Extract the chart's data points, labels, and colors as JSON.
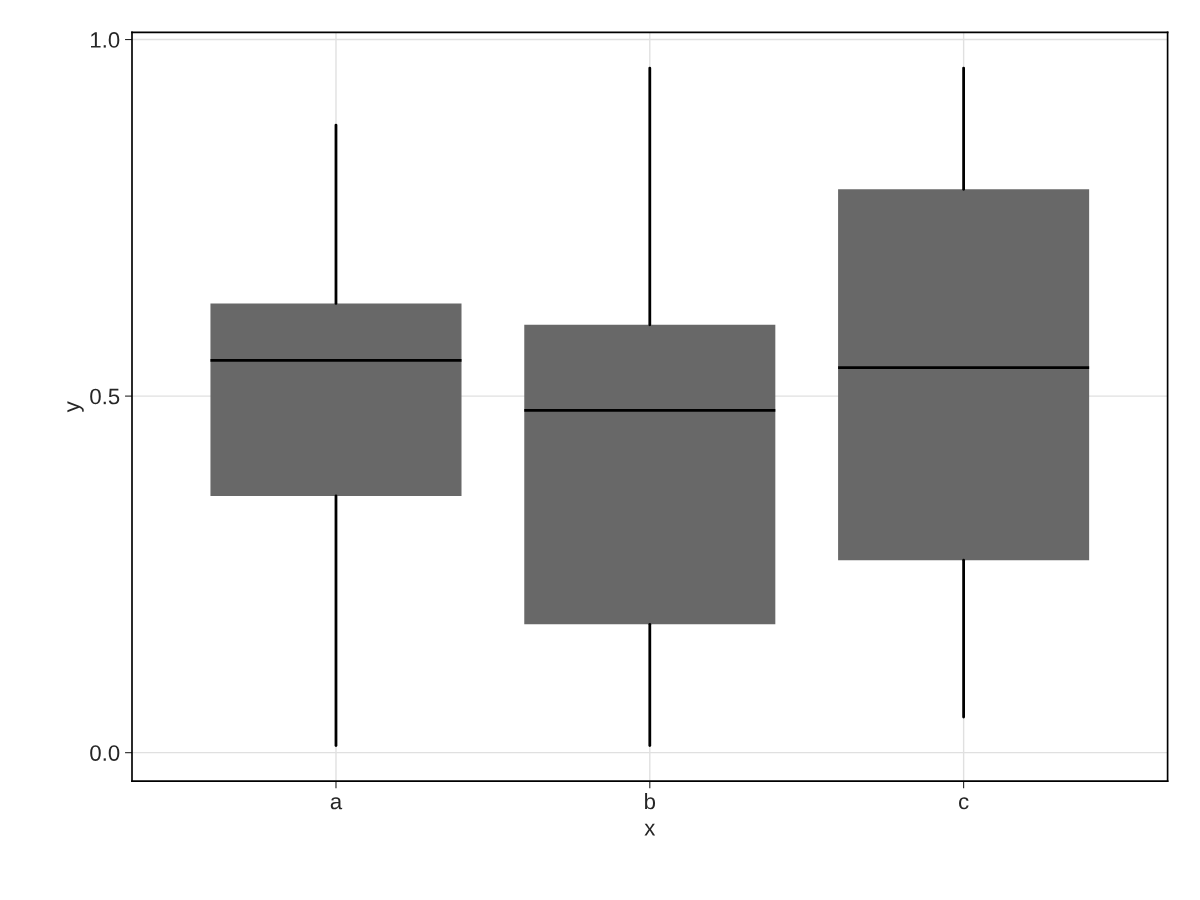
{
  "chart_data": {
    "type": "box",
    "xlabel": "x",
    "ylabel": "y",
    "categories": [
      "a",
      "b",
      "c"
    ],
    "boxes": [
      {
        "low": 0.01,
        "q1": 0.36,
        "median": 0.55,
        "q3": 0.63,
        "high": 0.88
      },
      {
        "low": 0.01,
        "q1": 0.18,
        "median": 0.48,
        "q3": 0.6,
        "high": 0.96
      },
      {
        "low": 0.05,
        "q1": 0.27,
        "median": 0.54,
        "q3": 0.79,
        "high": 0.96
      }
    ],
    "color": "#686868",
    "ylim": [
      -0.04,
      1.01
    ],
    "yticks": [
      {
        "value": 0,
        "label": "0.0"
      },
      0.5,
      {
        "value": 1,
        "label": "1.0"
      }
    ],
    "grid": true
  }
}
